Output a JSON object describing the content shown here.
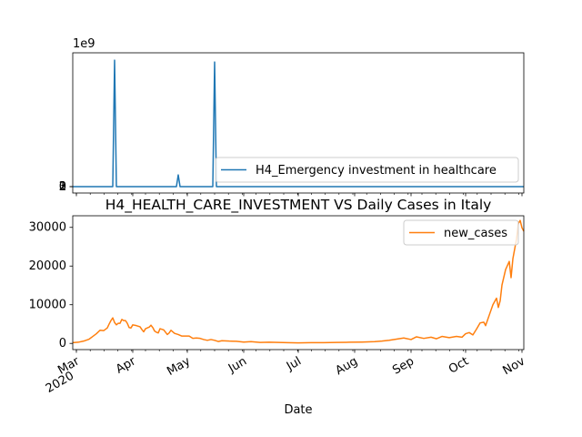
{
  "chart_data": [
    {
      "type": "line",
      "title": "",
      "xlabel": "",
      "ylabel": "",
      "y_offset_label": "1e9",
      "ylim": [
        -180000000,
        3780000000
      ],
      "xlim": [
        "2020-02-28",
        "2020-11-02"
      ],
      "grid": false,
      "legend_position": "lower right",
      "yticks": [
        0,
        1,
        2,
        3
      ],
      "series": [
        {
          "name": "H4_Emergency investment in healthcare",
          "color": "#1f77b4",
          "points": [
            [
              "2020-02-28",
              0
            ],
            [
              "2020-03-21",
              0
            ],
            [
              "2020-03-22",
              3570000000
            ],
            [
              "2020-03-23",
              0
            ],
            [
              "2020-04-25",
              0
            ],
            [
              "2020-04-26",
              330000000
            ],
            [
              "2020-04-27",
              0
            ],
            [
              "2020-05-15",
              0
            ],
            [
              "2020-05-16",
              3520000000
            ],
            [
              "2020-05-17",
              0
            ],
            [
              "2020-11-02",
              0
            ]
          ]
        }
      ]
    },
    {
      "type": "line",
      "title": "H4_HEALTH_CARE_INVESTMENT VS Daily Cases in Italy",
      "xlabel": "Date",
      "ylabel": "",
      "ylim": [
        -1600,
        33000
      ],
      "xlim": [
        "2020-02-28",
        "2020-11-02"
      ],
      "grid": false,
      "legend_position": "upper right",
      "yticks": [
        0,
        10000,
        20000,
        30000
      ],
      "xticks": [
        {
          "date": "2020-03-01",
          "label": "Mar",
          "sublabel": "2020"
        },
        {
          "date": "2020-04-01",
          "label": "Apr"
        },
        {
          "date": "2020-05-01",
          "label": "May"
        },
        {
          "date": "2020-06-01",
          "label": "Jun"
        },
        {
          "date": "2020-07-01",
          "label": "Jul"
        },
        {
          "date": "2020-08-01",
          "label": "Aug"
        },
        {
          "date": "2020-09-01",
          "label": "Sep"
        },
        {
          "date": "2020-10-01",
          "label": "Oct"
        },
        {
          "date": "2020-11-01",
          "label": "Nov"
        }
      ],
      "series": [
        {
          "name": "new_cases",
          "color": "#ff7f0e",
          "points": [
            [
              "2020-02-28",
              200
            ],
            [
              "2020-03-02",
              300
            ],
            [
              "2020-03-05",
              600
            ],
            [
              "2020-03-08",
              1100
            ],
            [
              "2020-03-10",
              1800
            ],
            [
              "2020-03-12",
              2500
            ],
            [
              "2020-03-14",
              3400
            ],
            [
              "2020-03-16",
              3300
            ],
            [
              "2020-03-18",
              4000
            ],
            [
              "2020-03-19",
              5000
            ],
            [
              "2020-03-20",
              5900
            ],
            [
              "2020-03-21",
              6600
            ],
            [
              "2020-03-22",
              5400
            ],
            [
              "2020-03-23",
              4800
            ],
            [
              "2020-03-24",
              5200
            ],
            [
              "2020-03-25",
              5200
            ],
            [
              "2020-03-26",
              6200
            ],
            [
              "2020-03-27",
              5900
            ],
            [
              "2020-03-28",
              5900
            ],
            [
              "2020-03-29",
              5200
            ],
            [
              "2020-03-30",
              4100
            ],
            [
              "2020-03-31",
              4000
            ],
            [
              "2020-04-01",
              4800
            ],
            [
              "2020-04-03",
              4600
            ],
            [
              "2020-04-05",
              4300
            ],
            [
              "2020-04-06",
              3600
            ],
            [
              "2020-04-07",
              3000
            ],
            [
              "2020-04-08",
              3800
            ],
            [
              "2020-04-10",
              4200
            ],
            [
              "2020-04-11",
              4700
            ],
            [
              "2020-04-12",
              4100
            ],
            [
              "2020-04-13",
              3200
            ],
            [
              "2020-04-14",
              2900
            ],
            [
              "2020-04-15",
              2700
            ],
            [
              "2020-04-16",
              3800
            ],
            [
              "2020-04-18",
              3500
            ],
            [
              "2020-04-20",
              2300
            ],
            [
              "2020-04-21",
              2700
            ],
            [
              "2020-04-22",
              3400
            ],
            [
              "2020-04-24",
              2600
            ],
            [
              "2020-04-26",
              2300
            ],
            [
              "2020-04-28",
              1900
            ],
            [
              "2020-04-30",
              1900
            ],
            [
              "2020-05-02",
              1900
            ],
            [
              "2020-05-04",
              1300
            ],
            [
              "2020-05-06",
              1400
            ],
            [
              "2020-05-08",
              1300
            ],
            [
              "2020-05-10",
              1000
            ],
            [
              "2020-05-12",
              800
            ],
            [
              "2020-05-14",
              1000
            ],
            [
              "2020-05-16",
              800
            ],
            [
              "2020-05-18",
              500
            ],
            [
              "2020-05-20",
              700
            ],
            [
              "2020-05-24",
              600
            ],
            [
              "2020-05-28",
              550
            ],
            [
              "2020-06-01",
              350
            ],
            [
              "2020-06-05",
              450
            ],
            [
              "2020-06-10",
              250
            ],
            [
              "2020-06-15",
              300
            ],
            [
              "2020-06-20",
              250
            ],
            [
              "2020-06-25",
              200
            ],
            [
              "2020-07-01",
              150
            ],
            [
              "2020-07-08",
              200
            ],
            [
              "2020-07-15",
              200
            ],
            [
              "2020-07-22",
              250
            ],
            [
              "2020-07-29",
              300
            ],
            [
              "2020-08-05",
              350
            ],
            [
              "2020-08-12",
              450
            ],
            [
              "2020-08-16",
              600
            ],
            [
              "2020-08-20",
              800
            ],
            [
              "2020-08-24",
              1100
            ],
            [
              "2020-08-28",
              1400
            ],
            [
              "2020-09-01",
              1000
            ],
            [
              "2020-09-04",
              1700
            ],
            [
              "2020-09-08",
              1300
            ],
            [
              "2020-09-12",
              1600
            ],
            [
              "2020-09-15",
              1200
            ],
            [
              "2020-09-18",
              1800
            ],
            [
              "2020-09-22",
              1500
            ],
            [
              "2020-09-26",
              1800
            ],
            [
              "2020-09-29",
              1600
            ],
            [
              "2020-10-01",
              2500
            ],
            [
              "2020-10-03",
              2800
            ],
            [
              "2020-10-05",
              2200
            ],
            [
              "2020-10-07",
              3700
            ],
            [
              "2020-10-09",
              5300
            ],
            [
              "2020-10-11",
              5500
            ],
            [
              "2020-10-12",
              4600
            ],
            [
              "2020-10-14",
              7300
            ],
            [
              "2020-10-16",
              10000
            ],
            [
              "2020-10-18",
              11700
            ],
            [
              "2020-10-19",
              9300
            ],
            [
              "2020-10-20",
              11000
            ],
            [
              "2020-10-21",
              15100
            ],
            [
              "2020-10-23",
              19100
            ],
            [
              "2020-10-25",
              21200
            ],
            [
              "2020-10-26",
              17000
            ],
            [
              "2020-10-27",
              21900
            ],
            [
              "2020-10-29",
              27000
            ],
            [
              "2020-10-30",
              31000
            ],
            [
              "2020-10-31",
              31800
            ],
            [
              "2020-11-01",
              29900
            ],
            [
              "2020-11-02",
              29000
            ]
          ]
        }
      ]
    }
  ]
}
